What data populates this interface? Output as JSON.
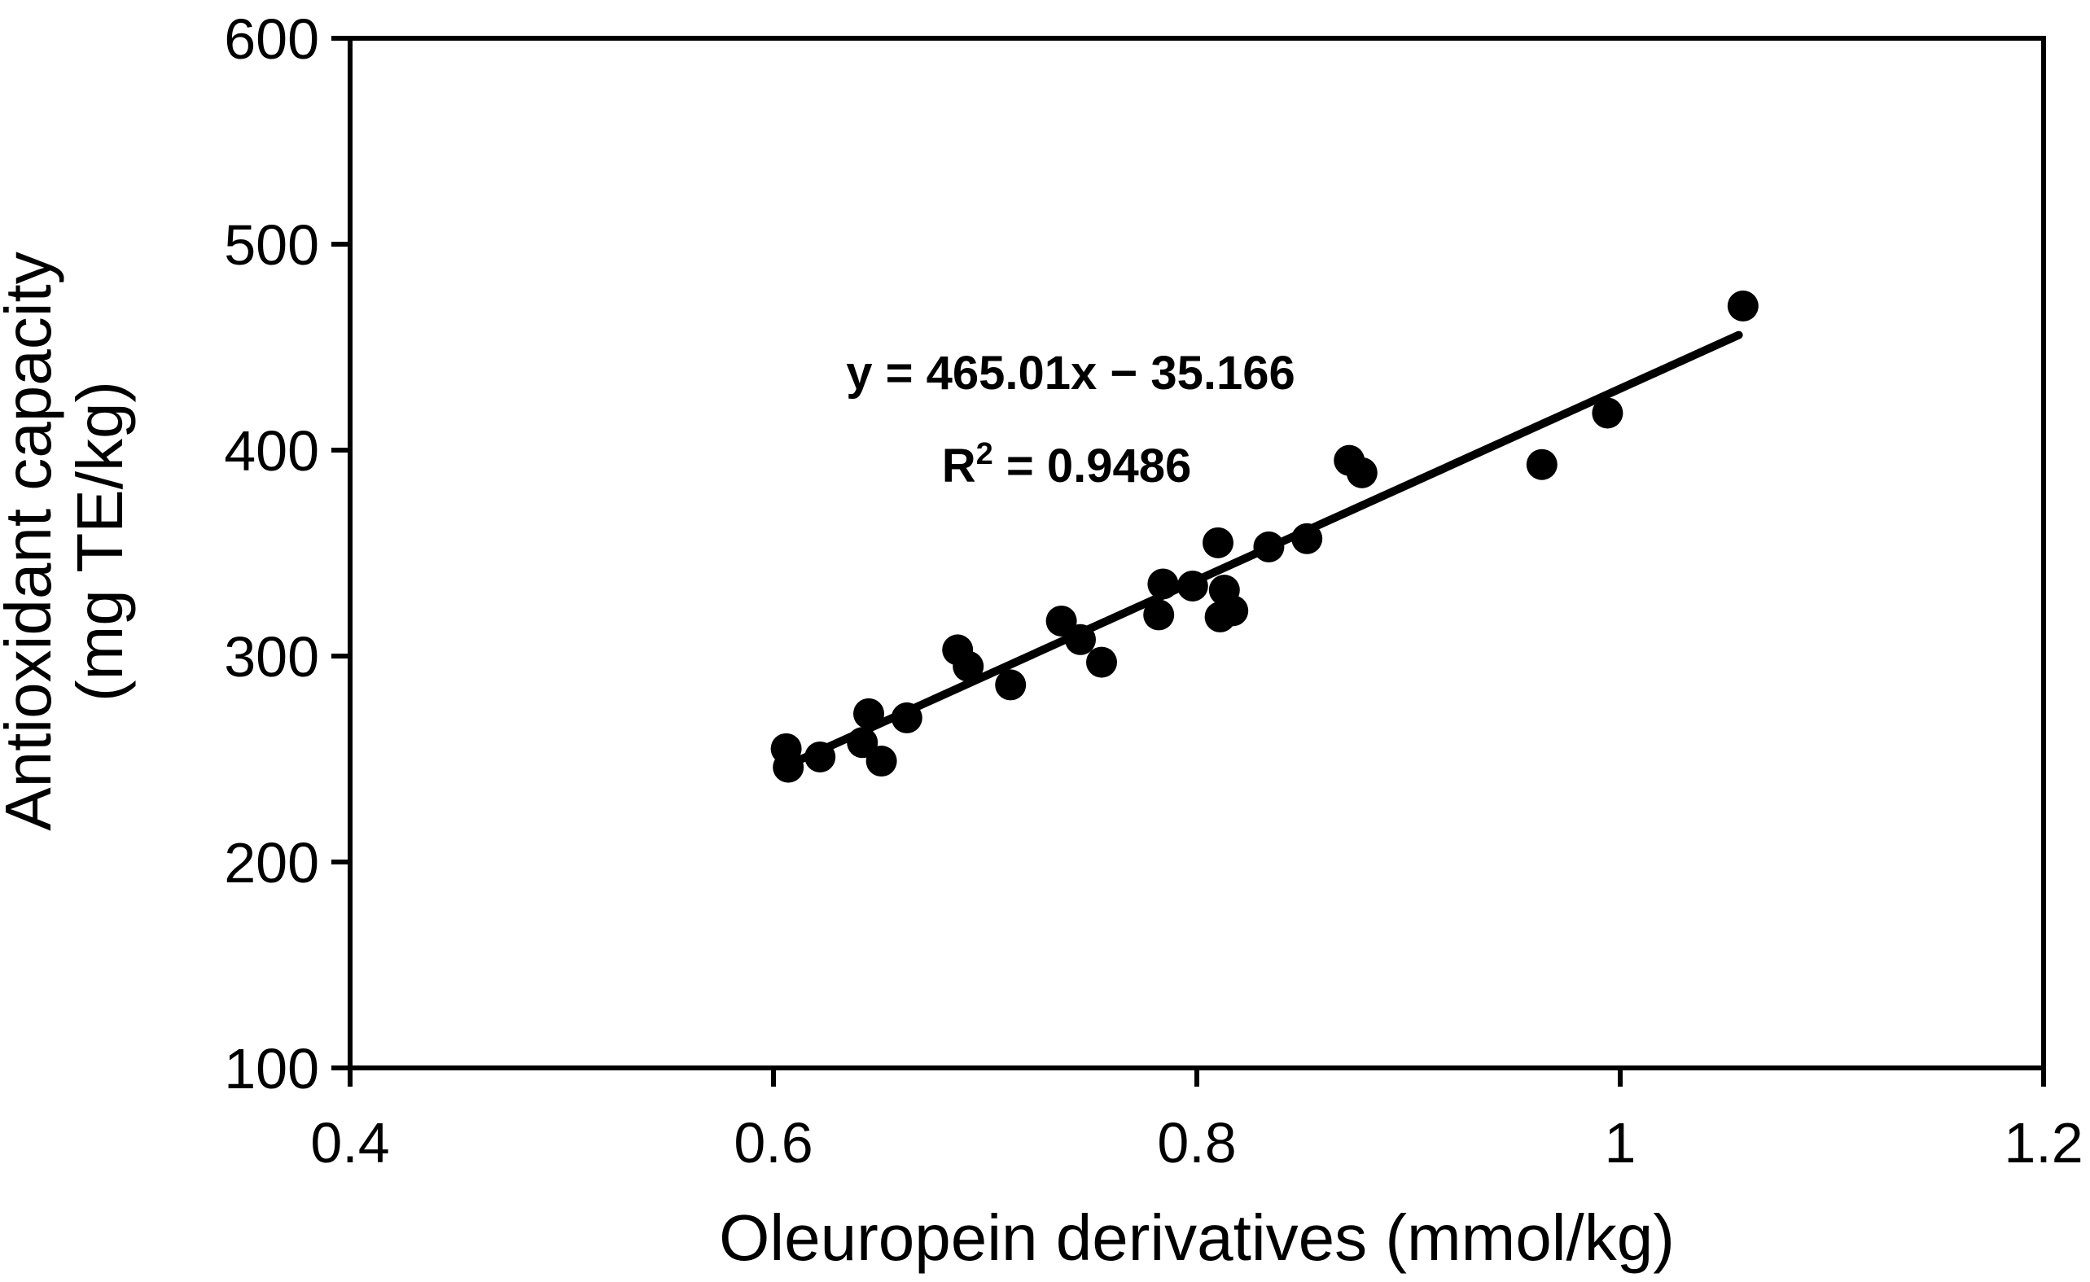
{
  "chart_data": {
    "type": "scatter",
    "title": "",
    "xlabel": "Oleuropein derivatives (mmol/kg)",
    "ylabel_line1": "Antioxidant capacity",
    "ylabel_line2": "(mg TE/kg)",
    "xlim": [
      0.4,
      1.2
    ],
    "ylim": [
      100,
      600
    ],
    "grid": false,
    "x_ticks": [
      {
        "value": 0.4,
        "label": "0.4"
      },
      {
        "value": 0.6,
        "label": "0.6"
      },
      {
        "value": 0.8,
        "label": "0.8"
      },
      {
        "value": 1.0,
        "label": "1"
      },
      {
        "value": 1.2,
        "label": "1.2"
      }
    ],
    "y_ticks": [
      {
        "value": 600,
        "label": "600"
      },
      {
        "value": 500,
        "label": "500"
      },
      {
        "value": 400,
        "label": "400"
      },
      {
        "value": 300,
        "label": "300"
      },
      {
        "value": 200,
        "label": "200"
      },
      {
        "value": 100,
        "label": "100"
      }
    ],
    "points": [
      [
        0.606,
        255
      ],
      [
        0.607,
        246
      ],
      [
        0.622,
        251
      ],
      [
        0.642,
        258
      ],
      [
        0.645,
        272
      ],
      [
        0.651,
        249
      ],
      [
        0.663,
        270
      ],
      [
        0.687,
        303
      ],
      [
        0.692,
        295
      ],
      [
        0.712,
        286
      ],
      [
        0.736,
        317
      ],
      [
        0.745,
        308
      ],
      [
        0.755,
        297
      ],
      [
        0.782,
        320
      ],
      [
        0.784,
        335
      ],
      [
        0.798,
        334
      ],
      [
        0.81,
        355
      ],
      [
        0.813,
        332
      ],
      [
        0.811,
        319
      ],
      [
        0.817,
        322
      ],
      [
        0.834,
        353
      ],
      [
        0.852,
        357
      ],
      [
        0.872,
        395
      ],
      [
        0.878,
        389
      ],
      [
        0.963,
        393
      ],
      [
        0.994,
        418
      ],
      [
        1.058,
        470
      ]
    ],
    "trendline": {
      "slope": 465.01,
      "intercept": -35.166,
      "x_start": 0.61,
      "x_end": 1.056
    },
    "equation": {
      "line1": "y = 465.01x − 35.166",
      "line2_base": "R",
      "line2_sup": "2",
      "line2_rest": " = 0.9486"
    },
    "colors": {
      "point": "#000000",
      "trend_line": "#000000",
      "axis": "#000000",
      "text": "#000000",
      "background": "#ffffff"
    }
  }
}
